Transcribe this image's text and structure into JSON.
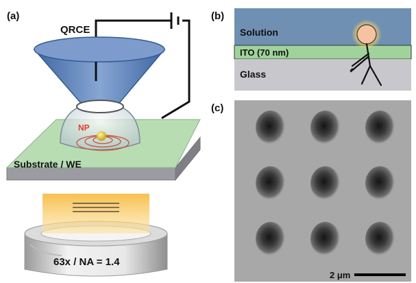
{
  "panels": {
    "a": {
      "label": "(a)",
      "qrce_label": "QRCE",
      "np_label": "NP",
      "substrate_label": "Substrate / WE",
      "objective_label": "63x / NA = 1.4"
    },
    "b": {
      "label": "(b)",
      "layers": [
        {
          "name": "Solution",
          "color": "#6f8fb3"
        },
        {
          "name": "ITO (70 nm)",
          "color": "#9fd39b"
        },
        {
          "name": "Glass",
          "color": "#c8c8cc"
        }
      ]
    },
    "c": {
      "label": "(c)",
      "scale_bar_label": "2 μm",
      "grid_rows": 3,
      "grid_cols": 3
    }
  },
  "colors": {
    "cone": "#5f82b8",
    "substrate_top": "#b9ddb3",
    "nanoparticle": "#d9c23a",
    "np_text": "#e53b2b",
    "glow": "#f8c84a",
    "micrograph_bg": "#a8a8a8"
  }
}
